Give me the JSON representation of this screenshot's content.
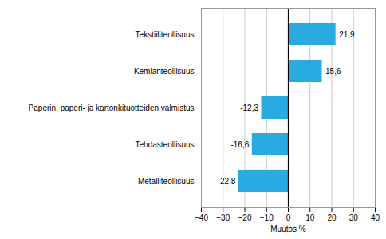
{
  "chart_data": {
    "type": "bar",
    "orientation": "horizontal",
    "categories": [
      "Metalliteollisuus",
      "Tehdasteollisuus",
      "Paperin, paperi- ja kartonkituotteiden valmistus",
      "Kemianteollisuus",
      "Tekstiiliteollisuus"
    ],
    "values": [
      -22.8,
      -16.6,
      -12.3,
      15.6,
      21.9
    ],
    "value_labels": [
      "-22,8",
      "-16,6",
      "-12,3",
      "15,6",
      "21,9"
    ],
    "data_labels": true,
    "color": "#29ABE2",
    "xlim": [
      -40,
      40
    ],
    "xticks": [
      -40,
      -30,
      -20,
      -10,
      0,
      10,
      20,
      30,
      40
    ],
    "xlabel": "Muutos %",
    "grid": true
  }
}
